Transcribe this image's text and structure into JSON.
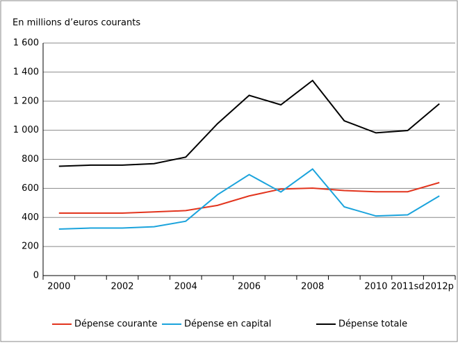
{
  "chart_data": {
    "type": "line",
    "title": "En millions d’euros courants",
    "categories": [
      "2000",
      null,
      "2002",
      null,
      "2004",
      null,
      "2006",
      null,
      "2008",
      null,
      "2010",
      "2011sd",
      "2012p"
    ],
    "series": [
      {
        "name": "Dépense courante",
        "color": "#e2341d",
        "values": [
          430,
          430,
          430,
          438,
          447,
          483,
          548,
          595,
          602,
          585,
          577,
          577,
          640
        ]
      },
      {
        "name": "Dépense en capital",
        "color": "#1aa3dc",
        "values": [
          320,
          327,
          327,
          336,
          374,
          556,
          695,
          575,
          733,
          473,
          410,
          418,
          548
        ]
      },
      {
        "name": "Dépense totale",
        "color": "#000000",
        "values": [
          752,
          760,
          760,
          770,
          815,
          1045,
          1240,
          1175,
          1342,
          1065,
          982,
          998,
          1182
        ]
      }
    ],
    "ylim": [
      0,
      1600
    ],
    "yticks": [
      0,
      200,
      400,
      600,
      800,
      {
        "value": 1000,
        "label": "1 000"
      },
      {
        "value": 1200,
        "label": "1 200"
      },
      {
        "value": 1400,
        "label": "1 400"
      },
      {
        "value": 1600,
        "label": "1 600"
      }
    ],
    "grid": true,
    "legend": "bottom"
  }
}
